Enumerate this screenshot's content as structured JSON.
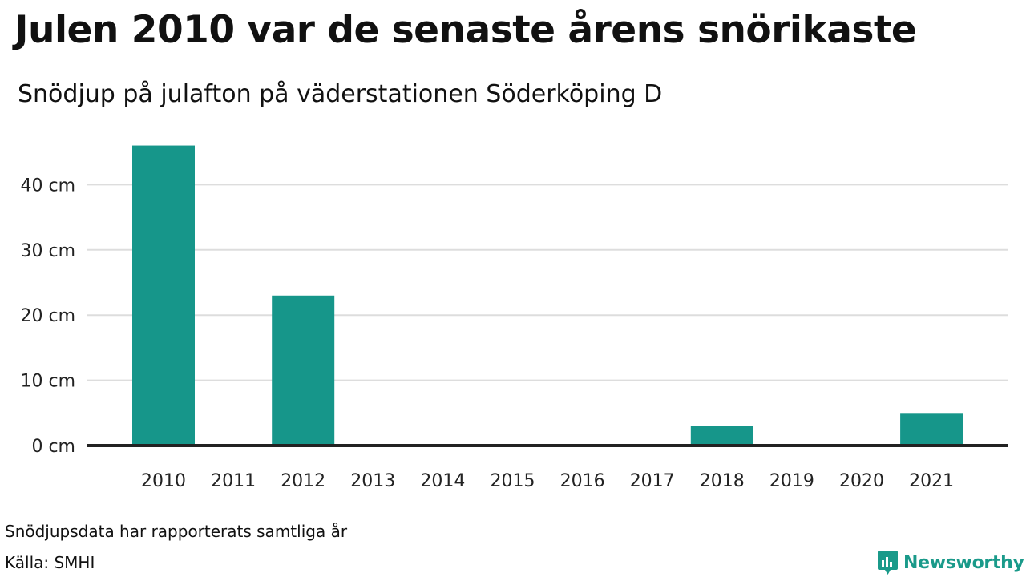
{
  "header": {
    "title": "Julen 2010 var de senaste årens snörikaste",
    "subtitle": "Snödjup på julafton på väderstationen Söderköping D"
  },
  "footer": {
    "note": "Snödjupsdata har rapporterats samtliga år",
    "source": "Källa: SMHI",
    "logo_text": "Newsworthy"
  },
  "colors": {
    "bar": "#16968a",
    "grid": "#dddddd",
    "axis": "#222222",
    "brand": "#1a9a8a"
  },
  "chart_data": {
    "type": "bar",
    "title": "Julen 2010 var de senaste årens snörikaste",
    "subtitle": "Snödjup på julafton på väderstationen Söderköping D",
    "categories": [
      "2010",
      "2011",
      "2012",
      "2013",
      "2014",
      "2015",
      "2016",
      "2017",
      "2018",
      "2019",
      "2020",
      "2021"
    ],
    "values": [
      46,
      0,
      23,
      0,
      0,
      0,
      0,
      0,
      3,
      0,
      0,
      5
    ],
    "unit": "cm",
    "yticks": [
      0,
      10,
      20,
      30,
      40
    ],
    "ytick_labels": [
      "0 cm",
      "10 cm",
      "20 cm",
      "30 cm",
      "40 cm"
    ],
    "ylim": [
      0,
      46
    ],
    "grid": true,
    "legend": "none"
  }
}
